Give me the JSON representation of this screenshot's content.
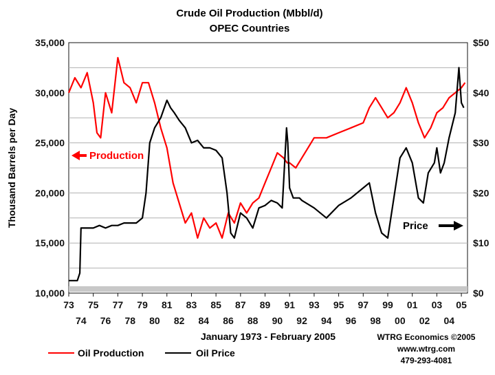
{
  "chart_data": {
    "type": "line",
    "title": "Crude Oil Production (Mbbl/d)",
    "subtitle": "OPEC Countries",
    "ylabel": "Thousand Barrels per Day",
    "ylim": [
      10000,
      35000
    ],
    "yticks": [
      "10,000",
      "15,000",
      "20,000",
      "25,000",
      "30,000",
      "35,000"
    ],
    "ytick_values": [
      10000,
      15000,
      20000,
      25000,
      30000,
      35000
    ],
    "y2lim": [
      0,
      50
    ],
    "y2ticks": [
      "$0",
      "$10",
      "$20",
      "$30",
      "$40",
      "$50"
    ],
    "y2tick_values": [
      0,
      10,
      20,
      30,
      40,
      50
    ],
    "xlim": [
      1973,
      2005.5
    ],
    "xticks_top": [
      "73",
      "75",
      "77",
      "79",
      "81",
      "83",
      "85",
      "87",
      "89",
      "91",
      "93",
      "95",
      "97",
      "99",
      "01",
      "03",
      "05"
    ],
    "xticks_top_values": [
      1973,
      1975,
      1977,
      1979,
      1981,
      1983,
      1985,
      1987,
      1989,
      1991,
      1993,
      1995,
      1997,
      1999,
      2001,
      2003,
      2005
    ],
    "xticks_bottom": [
      "74",
      "76",
      "78",
      "80",
      "82",
      "84",
      "86",
      "88",
      "90",
      "92",
      "94",
      "96",
      "98",
      "00",
      "02",
      "04"
    ],
    "xticks_bottom_values": [
      1974,
      1976,
      1978,
      1980,
      1982,
      1984,
      1986,
      1988,
      1990,
      1992,
      1994,
      1996,
      1998,
      2000,
      2002,
      2004
    ],
    "xlabel": "January 1973 - February 2005",
    "grid": true,
    "series": [
      {
        "name": "Oil Production",
        "color": "#ff0000",
        "axis": "left",
        "x": [
          1973,
          1973.5,
          1974,
          1974.5,
          1975,
          1975.3,
          1975.6,
          1976,
          1976.5,
          1977,
          1977.5,
          1978,
          1978.5,
          1979,
          1979.5,
          1980,
          1980.5,
          1981,
          1981.5,
          1982,
          1982.5,
          1983,
          1983.5,
          1984,
          1984.5,
          1985,
          1985.5,
          1986,
          1986.5,
          1987,
          1987.5,
          1988,
          1988.5,
          1989,
          1989.5,
          1990,
          1990.5,
          1990.8,
          1991,
          1991.5,
          1992,
          1992.5,
          1993,
          1993.5,
          1994,
          1995,
          1996,
          1997,
          1997.5,
          1998,
          1998.5,
          1999,
          1999.5,
          2000,
          2000.5,
          2001,
          2001.5,
          2002,
          2002.5,
          2003,
          2003.5,
          2004,
          2004.5,
          2005,
          2005.3
        ],
        "values": [
          30000,
          31500,
          30500,
          32000,
          29000,
          26000,
          25500,
          30000,
          28000,
          33500,
          31000,
          30500,
          29000,
          31000,
          31000,
          29000,
          26500,
          24500,
          21000,
          19000,
          17000,
          18000,
          15500,
          17500,
          16500,
          17000,
          15500,
          18000,
          17000,
          19000,
          18000,
          19000,
          19500,
          21000,
          22500,
          24000,
          23500,
          23000,
          23000,
          22500,
          23500,
          24500,
          25500,
          25500,
          25500,
          26000,
          26500,
          27000,
          28500,
          29500,
          28500,
          27500,
          28000,
          29000,
          30500,
          29000,
          27000,
          25500,
          26500,
          28000,
          28500,
          29500,
          30000,
          30500,
          31000
        ]
      },
      {
        "name": "Oil Price",
        "color": "#000000",
        "axis": "right",
        "x": [
          1973,
          1973.7,
          1973.9,
          1974,
          1974.5,
          1975,
          1975.5,
          1976,
          1976.5,
          1977,
          1977.5,
          1978,
          1978.5,
          1979,
          1979.3,
          1979.6,
          1980,
          1980.5,
          1981,
          1981.3,
          1981.6,
          1982,
          1982.5,
          1983,
          1983.5,
          1984,
          1984.5,
          1985,
          1985.5,
          1985.9,
          1986.2,
          1986.5,
          1987,
          1987.5,
          1988,
          1988.5,
          1989,
          1989.5,
          1990,
          1990.4,
          1990.75,
          1990.85,
          1991,
          1991.3,
          1991.8,
          1992,
          1993,
          1994,
          1995,
          1996,
          1997,
          1997.5,
          1998,
          1998.5,
          1999,
          1999.5,
          2000,
          2000.5,
          2001,
          2001.5,
          2001.9,
          2002.3,
          2002.8,
          2003,
          2003.3,
          2003.6,
          2004,
          2004.5,
          2004.8,
          2005,
          2005.2
        ],
        "values": [
          2.5,
          2.5,
          4,
          13,
          13,
          13,
          13.5,
          13,
          13.5,
          13.5,
          14,
          14,
          14,
          15,
          20,
          30,
          33,
          35,
          38.5,
          37,
          36,
          34.5,
          33,
          30,
          30.5,
          29,
          29,
          28.5,
          27,
          20,
          12,
          11,
          16,
          15,
          13,
          17,
          17.5,
          18.5,
          18,
          17,
          33,
          30,
          21,
          19,
          19,
          18.5,
          17,
          15,
          17.5,
          19,
          21,
          22,
          16,
          12,
          11,
          19,
          27,
          29,
          26,
          19,
          18,
          24,
          26,
          29,
          24,
          26,
          31,
          36,
          45,
          38,
          37
        ]
      }
    ],
    "annotations": [
      {
        "text": "Production",
        "arrow": "left"
      },
      {
        "text": "Price",
        "arrow": "right"
      }
    ],
    "credits": [
      "WTRG Economics ©2005",
      "www.wtrg.com",
      "479-293-4081"
    ],
    "legend": [
      {
        "label": "Oil Production",
        "color": "#ff0000"
      },
      {
        "label": "Oil Price",
        "color": "#000000"
      }
    ]
  }
}
